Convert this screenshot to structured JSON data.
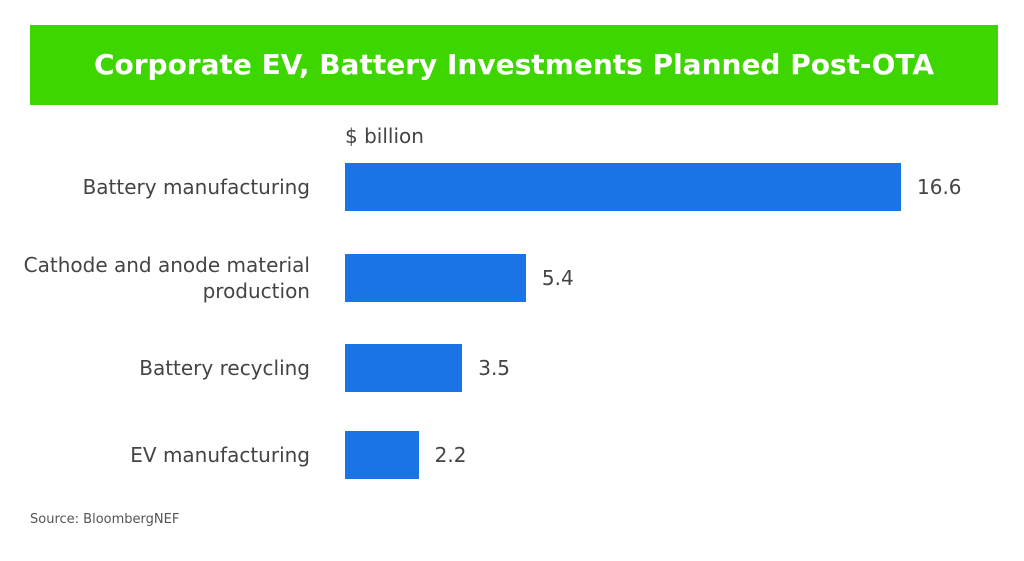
{
  "chart_data": {
    "type": "bar",
    "orientation": "horizontal",
    "title": "Corporate EV, Battery Investments Planned Post-OTA",
    "unit_label": "$ billion",
    "categories": [
      "Battery manufacturing",
      "Cathode and anode material production",
      "Battery recycling",
      "EV manufacturing"
    ],
    "values": [
      16.6,
      5.4,
      3.5,
      2.2
    ],
    "color": "#1a74e6",
    "source": "Source: BloombergNEF"
  }
}
